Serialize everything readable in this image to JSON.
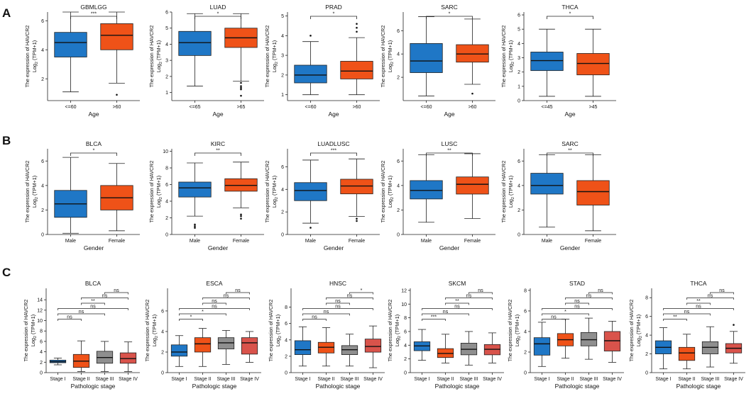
{
  "panel_labels": [
    "A",
    "B",
    "C"
  ],
  "ylabel": {
    "line1": "The expression of HAVCR2",
    "line2_base": "Log",
    "line2_sub": "2",
    "line2_rest": " (TPM+1)"
  },
  "colors": {
    "blue": "#1f77c6",
    "orange": "#ef5218",
    "gray": "#8f8f8f",
    "red": "#d9534b",
    "outline": "#222222"
  },
  "chart_data": [
    {
      "type": "box",
      "row": "A",
      "title": "GBMLGG",
      "xlabel": "Age",
      "ylim": [
        0.5,
        6.6
      ],
      "yticks": [
        2,
        4,
        6
      ],
      "groups": [
        {
          "label": "<=60",
          "color": "blue",
          "min": 1.1,
          "q1": 3.5,
          "median": 4.5,
          "q3": 5.2,
          "max": 6.6,
          "outliers": []
        },
        {
          "label": ">60",
          "color": "orange",
          "min": 1.7,
          "q1": 4.0,
          "median": 5.0,
          "q3": 5.8,
          "max": 6.6,
          "outliers": [
            0.9
          ]
        }
      ],
      "sig": [
        {
          "a": 0,
          "b": 1,
          "label": "***"
        }
      ]
    },
    {
      "type": "box",
      "row": "A",
      "title": "LUAD",
      "xlabel": "Age",
      "ylim": [
        0.5,
        6.0
      ],
      "yticks": [
        1,
        2,
        3,
        4,
        5,
        6
      ],
      "groups": [
        {
          "label": "<=65",
          "color": "blue",
          "min": 1.4,
          "q1": 3.3,
          "median": 4.1,
          "q3": 4.8,
          "max": 5.9,
          "outliers": []
        },
        {
          "label": ">65",
          "color": "orange",
          "min": 1.7,
          "q1": 3.8,
          "median": 4.4,
          "q3": 5.0,
          "max": 5.9,
          "outliers": [
            1.6,
            1.4,
            1.3,
            1.2,
            0.8
          ]
        }
      ],
      "sig": [
        {
          "a": 0,
          "b": 1,
          "label": "*"
        }
      ]
    },
    {
      "type": "box",
      "row": "A",
      "title": "PRAD",
      "xlabel": "Age",
      "ylim": [
        0.7,
        5.2
      ],
      "yticks": [
        1,
        2,
        3,
        4,
        5
      ],
      "groups": [
        {
          "label": "<=60",
          "color": "blue",
          "min": 1.0,
          "q1": 1.6,
          "median": 2.0,
          "q3": 2.5,
          "max": 3.7,
          "outliers": [
            4.0
          ]
        },
        {
          "label": ">60",
          "color": "orange",
          "min": 1.0,
          "q1": 1.8,
          "median": 2.2,
          "q3": 2.7,
          "max": 3.9,
          "outliers": [
            4.6,
            4.4,
            4.2
          ]
        }
      ],
      "sig": [
        {
          "a": 0,
          "b": 1,
          "label": "*"
        }
      ]
    },
    {
      "type": "box",
      "row": "A",
      "title": "SARC",
      "xlabel": "Age",
      "ylim": [
        0,
        7.6
      ],
      "yticks": [
        2,
        4,
        6
      ],
      "groups": [
        {
          "label": "<=60",
          "color": "blue",
          "min": 0.4,
          "q1": 2.4,
          "median": 3.4,
          "q3": 4.9,
          "max": 7.2,
          "outliers": []
        },
        {
          "label": ">60",
          "color": "orange",
          "min": 1.4,
          "q1": 3.3,
          "median": 4.0,
          "q3": 4.8,
          "max": 7.0,
          "outliers": [
            0.6
          ]
        }
      ],
      "sig": [
        {
          "a": 0,
          "b": 1,
          "label": "*"
        }
      ]
    },
    {
      "type": "box",
      "row": "A",
      "title": "THCA",
      "xlabel": "Age",
      "ylim": [
        0,
        6.2
      ],
      "yticks": [
        0,
        1,
        2,
        3,
        4,
        5,
        6
      ],
      "groups": [
        {
          "label": "<=45",
          "color": "blue",
          "min": 0.3,
          "q1": 2.1,
          "median": 2.8,
          "q3": 3.4,
          "max": 5.0,
          "outliers": []
        },
        {
          "label": ">45",
          "color": "orange",
          "min": 0.3,
          "q1": 1.8,
          "median": 2.6,
          "q3": 3.3,
          "max": 5.0,
          "outliers": []
        }
      ],
      "sig": [
        {
          "a": 0,
          "b": 1,
          "label": "*"
        }
      ]
    },
    {
      "type": "box",
      "row": "B",
      "title": "BLCA",
      "xlabel": "Gender",
      "ylim": [
        0,
        7.0
      ],
      "yticks": [
        0,
        2,
        4,
        6
      ],
      "groups": [
        {
          "label": "Male",
          "color": "blue",
          "min": 0.1,
          "q1": 1.4,
          "median": 2.5,
          "q3": 3.6,
          "max": 6.3,
          "outliers": []
        },
        {
          "label": "Female",
          "color": "orange",
          "min": 0.3,
          "q1": 2.0,
          "median": 3.0,
          "q3": 4.0,
          "max": 5.8,
          "outliers": []
        }
      ],
      "sig": [
        {
          "a": 0,
          "b": 1,
          "label": "*"
        }
      ]
    },
    {
      "type": "box",
      "row": "B",
      "title": "KIRC",
      "xlabel": "Gender",
      "ylim": [
        0,
        10.3
      ],
      "yticks": [
        0,
        2,
        4,
        6,
        8,
        10
      ],
      "groups": [
        {
          "label": "Male",
          "color": "blue",
          "min": 2.2,
          "q1": 4.5,
          "median": 5.6,
          "q3": 6.3,
          "max": 8.6,
          "outliers": [
            1.2,
            1.0,
            0.8
          ]
        },
        {
          "label": "Female",
          "color": "orange",
          "min": 3.2,
          "q1": 5.2,
          "median": 5.9,
          "q3": 6.7,
          "max": 8.7,
          "outliers": [
            2.4,
            2.2,
            1.9
          ]
        }
      ],
      "sig": [
        {
          "a": 0,
          "b": 1,
          "label": "**"
        }
      ]
    },
    {
      "type": "box",
      "row": "B",
      "title": "LUADLUSC",
      "xlabel": "Gender",
      "ylim": [
        0,
        7.6
      ],
      "yticks": [
        0,
        2,
        4,
        6
      ],
      "groups": [
        {
          "label": "Male",
          "color": "blue",
          "min": 1.0,
          "q1": 3.0,
          "median": 3.9,
          "q3": 4.6,
          "max": 6.6,
          "outliers": [
            0.6
          ]
        },
        {
          "label": "Female",
          "color": "orange",
          "min": 1.6,
          "q1": 3.6,
          "median": 4.3,
          "q3": 4.9,
          "max": 6.7,
          "outliers": [
            1.4,
            1.2
          ]
        }
      ],
      "sig": [
        {
          "a": 0,
          "b": 1,
          "label": "***"
        }
      ]
    },
    {
      "type": "box",
      "row": "B",
      "title": "LUSC",
      "xlabel": "Gender",
      "ylim": [
        0,
        7.0
      ],
      "yticks": [
        0,
        2,
        4,
        6
      ],
      "groups": [
        {
          "label": "Male",
          "color": "blue",
          "min": 1.0,
          "q1": 2.9,
          "median": 3.6,
          "q3": 4.4,
          "max": 6.5,
          "outliers": []
        },
        {
          "label": "Female",
          "color": "orange",
          "min": 1.3,
          "q1": 3.3,
          "median": 4.1,
          "q3": 4.7,
          "max": 6.6,
          "outliers": []
        }
      ],
      "sig": [
        {
          "a": 0,
          "b": 1,
          "label": "**"
        }
      ]
    },
    {
      "type": "box",
      "row": "B",
      "title": "SARC",
      "xlabel": "Gender",
      "ylim": [
        0,
        7.0
      ],
      "yticks": [
        0,
        2,
        4,
        6
      ],
      "groups": [
        {
          "label": "Male",
          "color": "blue",
          "min": 0.6,
          "q1": 3.3,
          "median": 4.0,
          "q3": 5.0,
          "max": 6.5,
          "outliers": []
        },
        {
          "label": "Female",
          "color": "orange",
          "min": 0.3,
          "q1": 2.4,
          "median": 3.5,
          "q3": 4.4,
          "max": 6.5,
          "outliers": []
        }
      ],
      "sig": [
        {
          "a": 0,
          "b": 1,
          "label": "**"
        }
      ]
    },
    {
      "type": "box",
      "row": "C",
      "title": "BLCA",
      "xlabel": "Pathologic stage",
      "ylim": [
        0,
        16.2
      ],
      "yticks": [
        0,
        2,
        4,
        6,
        8,
        10,
        12,
        14
      ],
      "groups": [
        {
          "label": "Stage I",
          "color": "blue",
          "min": 1.5,
          "q1": 1.9,
          "median": 2.1,
          "q3": 2.4,
          "max": 2.8,
          "outliers": []
        },
        {
          "label": "Stage II",
          "color": "orange",
          "min": 0.2,
          "q1": 1.0,
          "median": 2.2,
          "q3": 3.5,
          "max": 6.1,
          "outliers": []
        },
        {
          "label": "Stage III",
          "color": "gray",
          "min": 0.2,
          "q1": 1.8,
          "median": 2.9,
          "q3": 4.1,
          "max": 6.0,
          "outliers": []
        },
        {
          "label": "Stage IV",
          "color": "red",
          "min": 0.2,
          "q1": 1.8,
          "median": 2.7,
          "q3": 3.8,
          "max": 5.9,
          "outliers": []
        }
      ],
      "sig": [
        {
          "a": 0,
          "b": 1,
          "label": "ns"
        },
        {
          "a": 0,
          "b": 2,
          "label": "ns"
        },
        {
          "a": 0,
          "b": 3,
          "label": "ns"
        },
        {
          "a": 1,
          "b": 2,
          "label": "**"
        },
        {
          "a": 1,
          "b": 3,
          "label": "ns"
        },
        {
          "a": 2,
          "b": 3,
          "label": "ns"
        }
      ]
    },
    {
      "type": "box",
      "row": "C",
      "title": "ESCA",
      "xlabel": "Pathologic stage",
      "ylim": [
        0,
        8.2
      ],
      "yticks": [
        0,
        2,
        4,
        6
      ],
      "groups": [
        {
          "label": "Stage I",
          "color": "blue",
          "min": 0.6,
          "q1": 1.6,
          "median": 2.0,
          "q3": 2.7,
          "max": 3.6,
          "outliers": []
        },
        {
          "label": "Stage II",
          "color": "orange",
          "min": 0.6,
          "q1": 2.0,
          "median": 2.8,
          "q3": 3.4,
          "max": 4.3,
          "outliers": []
        },
        {
          "label": "Stage III",
          "color": "gray",
          "min": 0.8,
          "q1": 2.3,
          "median": 2.9,
          "q3": 3.4,
          "max": 4.1,
          "outliers": []
        },
        {
          "label": "Stage IV",
          "color": "red",
          "min": 1.0,
          "q1": 1.8,
          "median": 2.9,
          "q3": 3.4,
          "max": 4.0,
          "outliers": []
        }
      ],
      "sig": [
        {
          "a": 0,
          "b": 1,
          "label": "*"
        },
        {
          "a": 0,
          "b": 2,
          "label": "*"
        },
        {
          "a": 0,
          "b": 3,
          "label": "ns"
        },
        {
          "a": 1,
          "b": 2,
          "label": "ns"
        },
        {
          "a": 1,
          "b": 3,
          "label": "ns"
        },
        {
          "a": 2,
          "b": 3,
          "label": "ns"
        }
      ]
    },
    {
      "type": "box",
      "row": "C",
      "title": "HNSC",
      "xlabel": "Pathologic stage",
      "ylim": [
        0,
        10.3
      ],
      "yticks": [
        0,
        2,
        4,
        6,
        8
      ],
      "groups": [
        {
          "label": "Stage I",
          "color": "blue",
          "min": 0.8,
          "q1": 2.2,
          "median": 2.8,
          "q3": 3.9,
          "max": 5.6,
          "outliers": []
        },
        {
          "label": "Stage II",
          "color": "orange",
          "min": 0.8,
          "q1": 2.4,
          "median": 3.1,
          "q3": 3.7,
          "max": 5.5,
          "outliers": []
        },
        {
          "label": "Stage III",
          "color": "gray",
          "min": 0.8,
          "q1": 2.2,
          "median": 2.8,
          "q3": 3.3,
          "max": 4.7,
          "outliers": []
        },
        {
          "label": "Stage IV",
          "color": "red",
          "min": 0.6,
          "q1": 2.5,
          "median": 3.2,
          "q3": 4.1,
          "max": 5.7,
          "outliers": []
        }
      ],
      "sig": [
        {
          "a": 0,
          "b": 1,
          "label": "ns"
        },
        {
          "a": 0,
          "b": 2,
          "label": "ns"
        },
        {
          "a": 0,
          "b": 3,
          "label": "ns"
        },
        {
          "a": 1,
          "b": 2,
          "label": "ns"
        },
        {
          "a": 1,
          "b": 3,
          "label": "ns"
        },
        {
          "a": 2,
          "b": 3,
          "label": "*"
        }
      ]
    },
    {
      "type": "box",
      "row": "C",
      "title": "SKCM",
      "xlabel": "Pathologic stage",
      "ylim": [
        0,
        12.3
      ],
      "yticks": [
        0,
        2,
        4,
        6,
        8,
        10,
        12
      ],
      "groups": [
        {
          "label": "Stage I",
          "color": "blue",
          "min": 1.8,
          "q1": 3.2,
          "median": 3.9,
          "q3": 4.5,
          "max": 6.3,
          "outliers": []
        },
        {
          "label": "Stage II",
          "color": "orange",
          "min": 1.4,
          "q1": 2.2,
          "median": 2.8,
          "q3": 3.5,
          "max": 5.6,
          "outliers": []
        },
        {
          "label": "Stage III",
          "color": "gray",
          "min": 1.1,
          "q1": 2.6,
          "median": 3.4,
          "q3": 4.3,
          "max": 6.0,
          "outliers": []
        },
        {
          "label": "Stage IV",
          "color": "red",
          "min": 1.4,
          "q1": 2.6,
          "median": 3.4,
          "q3": 4.1,
          "max": 5.8,
          "outliers": []
        }
      ],
      "sig": [
        {
          "a": 0,
          "b": 1,
          "label": "***"
        },
        {
          "a": 0,
          "b": 2,
          "label": "ns"
        },
        {
          "a": 0,
          "b": 3,
          "label": "ns"
        },
        {
          "a": 1,
          "b": 2,
          "label": "**"
        },
        {
          "a": 1,
          "b": 3,
          "label": "ns"
        },
        {
          "a": 2,
          "b": 3,
          "label": "ns"
        }
      ]
    },
    {
      "type": "box",
      "row": "C",
      "title": "STAD",
      "xlabel": "Pathologic stage",
      "ylim": [
        0,
        8.2
      ],
      "yticks": [
        0,
        2,
        4,
        6,
        8
      ],
      "groups": [
        {
          "label": "Stage I",
          "color": "blue",
          "min": 0.6,
          "q1": 1.7,
          "median": 2.8,
          "q3": 3.4,
          "max": 4.9,
          "outliers": []
        },
        {
          "label": "Stage II",
          "color": "orange",
          "min": 1.4,
          "q1": 2.6,
          "median": 3.2,
          "q3": 3.8,
          "max": 5.2,
          "outliers": []
        },
        {
          "label": "Stage III",
          "color": "gray",
          "min": 1.3,
          "q1": 2.6,
          "median": 3.2,
          "q3": 3.9,
          "max": 5.3,
          "outliers": []
        },
        {
          "label": "Stage IV",
          "color": "red",
          "min": 1.0,
          "q1": 2.1,
          "median": 3.1,
          "q3": 4.0,
          "max": 5.0,
          "outliers": []
        }
      ],
      "sig": [
        {
          "a": 0,
          "b": 1,
          "label": "ns"
        },
        {
          "a": 0,
          "b": 2,
          "label": "*"
        },
        {
          "a": 0,
          "b": 3,
          "label": "ns"
        },
        {
          "a": 1,
          "b": 2,
          "label": "ns"
        },
        {
          "a": 1,
          "b": 3,
          "label": "ns"
        },
        {
          "a": 2,
          "b": 3,
          "label": "ns"
        }
      ]
    },
    {
      "type": "box",
      "row": "C",
      "title": "THCA",
      "xlabel": "Pathologic stage",
      "ylim": [
        0,
        9.0
      ],
      "yticks": [
        0,
        2,
        4,
        6,
        8
      ],
      "groups": [
        {
          "label": "Stage I",
          "color": "blue",
          "min": 0.4,
          "q1": 2.0,
          "median": 2.7,
          "q3": 3.4,
          "max": 4.8,
          "outliers": []
        },
        {
          "label": "Stage II",
          "color": "orange",
          "min": 0.4,
          "q1": 1.3,
          "median": 2.1,
          "q3": 2.7,
          "max": 4.1,
          "outliers": []
        },
        {
          "label": "Stage III",
          "color": "gray",
          "min": 0.6,
          "q1": 2.0,
          "median": 2.7,
          "q3": 3.3,
          "max": 4.9,
          "outliers": []
        },
        {
          "label": "Stage IV",
          "color": "red",
          "min": 1.0,
          "q1": 2.1,
          "median": 2.6,
          "q3": 3.1,
          "max": 4.4,
          "outliers": [
            5.1
          ]
        }
      ],
      "sig": [
        {
          "a": 0,
          "b": 1,
          "label": "**"
        },
        {
          "a": 0,
          "b": 2,
          "label": "ns"
        },
        {
          "a": 0,
          "b": 3,
          "label": "ns"
        },
        {
          "a": 1,
          "b": 2,
          "label": "**"
        },
        {
          "a": 1,
          "b": 3,
          "label": "ns"
        },
        {
          "a": 2,
          "b": 3,
          "label": "ns"
        }
      ]
    }
  ]
}
